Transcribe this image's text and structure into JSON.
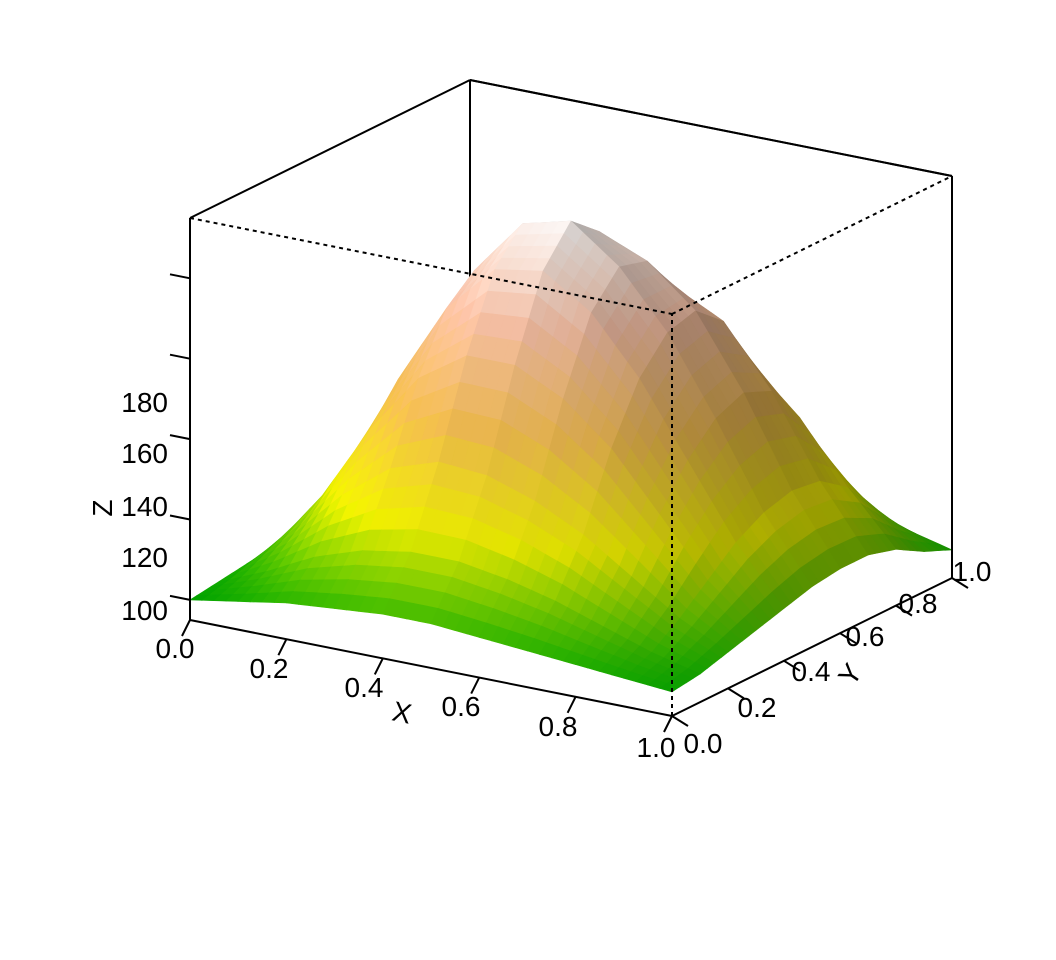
{
  "chart_data": {
    "type": "surface",
    "title": "",
    "xlabel": "X",
    "ylabel": "Y",
    "zlabel": "Z",
    "xlim": [
      0,
      1
    ],
    "ylim": [
      0,
      1
    ],
    "zlim": [
      95,
      195
    ],
    "x_ticks": [
      "0.0",
      "0.2",
      "0.4",
      "0.6",
      "0.8",
      "1.0"
    ],
    "y_ticks": [
      "0.0",
      "0.2",
      "0.4",
      "0.6",
      "0.8",
      "1.0"
    ],
    "z_ticks": [
      "100",
      "120",
      "140",
      "160",
      "180"
    ],
    "colormap": [
      "#00A600",
      "#E6E600",
      "#EAB64E",
      "#EEB99F",
      "#F2F2F2"
    ],
    "grid": false,
    "legend": "none",
    "description_values": {
      "base_level": 100,
      "peak_level": 190,
      "x_samples": [
        0.0,
        0.1,
        0.2,
        0.3,
        0.4,
        0.5,
        0.6,
        0.7,
        0.8,
        0.9,
        1.0
      ],
      "y_samples": [
        0.0,
        0.1,
        0.2,
        0.3,
        0.4,
        0.5,
        0.6,
        0.7,
        0.8,
        0.9,
        1.0
      ],
      "z_grid": [
        [
          100,
          101,
          102,
          103,
          104,
          105,
          105,
          104,
          103,
          102,
          101
        ],
        [
          102,
          106,
          112,
          118,
          121,
          122,
          121,
          118,
          113,
          108,
          104
        ],
        [
          104,
          112,
          124,
          137,
          146,
          149,
          147,
          140,
          130,
          118,
          108
        ],
        [
          105,
          116,
          133,
          152,
          166,
          172,
          170,
          160,
          145,
          126,
          111
        ],
        [
          106,
          118,
          137,
          160,
          178,
          186,
          181,
          168,
          150,
          129,
          112
        ],
        [
          106,
          118,
          136,
          160,
          180,
          189,
          183,
          170,
          152,
          131,
          113
        ],
        [
          105,
          116,
          132,
          154,
          172,
          180,
          178,
          168,
          152,
          132,
          113
        ],
        [
          104,
          113,
          126,
          144,
          158,
          166,
          168,
          162,
          148,
          129,
          111
        ],
        [
          103,
          109,
          118,
          130,
          140,
          147,
          150,
          147,
          137,
          122,
          109
        ],
        [
          102,
          105,
          110,
          116,
          122,
          126,
          128,
          127,
          122,
          113,
          105
        ],
        [
          101,
          102,
          104,
          106,
          108,
          110,
          111,
          111,
          109,
          105,
          102
        ]
      ]
    }
  }
}
